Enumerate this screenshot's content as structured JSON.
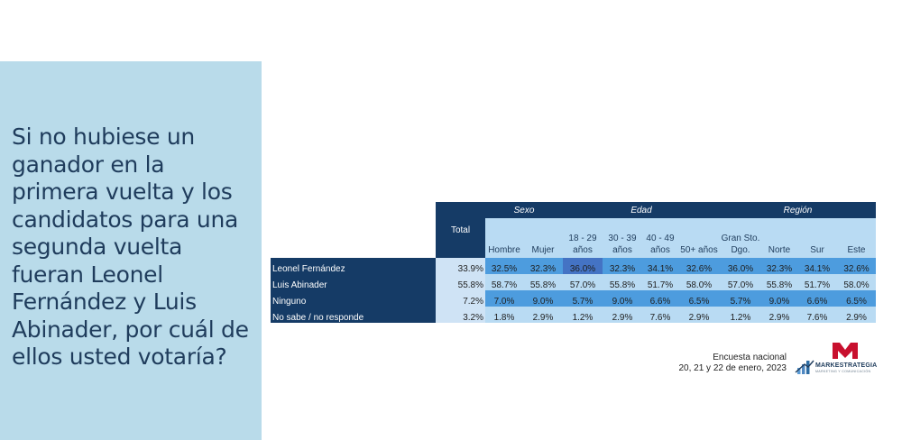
{
  "question": "Si no hubiese un ganador en la primera vuelta y los candidatos para una segunda vuelta fueran Leonel Fernández y Luis Abinader, por cuál de ellos usted votaría?",
  "table": {
    "total_label": "Total",
    "groups": [
      {
        "label": "Sexo",
        "span": 2
      },
      {
        "label": "Edad",
        "span": 4
      },
      {
        "label": "Región",
        "span": 4
      }
    ],
    "columns": [
      "Hombre",
      "Mujer",
      "18 - 29 años",
      "30 - 39 años",
      "40 - 49 años",
      "50+ años",
      "Gran Sto. Dgo.",
      "Norte",
      "Sur",
      "Este"
    ],
    "rows": [
      {
        "label": "Leonel Fernández",
        "total": "33.9%",
        "values": [
          "32.5%",
          "32.3%",
          "36.0%",
          "32.3%",
          "34.1%",
          "32.6%",
          "36.0%",
          "32.3%",
          "34.1%",
          "32.6%"
        ]
      },
      {
        "label": "Luis Abinader",
        "total": "55.8%",
        "values": [
          "58.7%",
          "55.8%",
          "57.0%",
          "55.8%",
          "51.7%",
          "58.0%",
          "57.0%",
          "55.8%",
          "51.7%",
          "58.0%"
        ]
      },
      {
        "label": "Ninguno",
        "total": "7.2%",
        "values": [
          "7.0%",
          "9.0%",
          "5.7%",
          "9.0%",
          "6.6%",
          "6.5%",
          "5.7%",
          "9.0%",
          "6.6%",
          "6.5%"
        ]
      },
      {
        "label": "No sabe / no responde",
        "total": "3.2%",
        "values": [
          "1.8%",
          "2.9%",
          "1.2%",
          "2.9%",
          "7.6%",
          "2.9%",
          "1.2%",
          "2.9%",
          "7.6%",
          "2.9%"
        ]
      }
    ]
  },
  "chart_data": {
    "type": "table",
    "columns": [
      "Total",
      "Hombre",
      "Mujer",
      "18 - 29 años",
      "30 - 39 años",
      "40 - 49 años",
      "50+ años",
      "Gran Sto. Dgo.",
      "Norte",
      "Sur",
      "Este"
    ],
    "column_groups": {
      "Sexo": [
        "Hombre",
        "Mujer"
      ],
      "Edad": [
        "18 - 29 años",
        "30 - 39 años",
        "40 - 49 años",
        "50+ años"
      ],
      "Región": [
        "Gran Sto. Dgo.",
        "Norte",
        "Sur",
        "Este"
      ]
    },
    "series": [
      {
        "name": "Leonel Fernández",
        "values": [
          33.9,
          32.5,
          32.3,
          36.0,
          32.3,
          34.1,
          32.6,
          36.0,
          32.3,
          34.1,
          32.6
        ]
      },
      {
        "name": "Luis Abinader",
        "values": [
          55.8,
          58.7,
          55.8,
          57.0,
          55.8,
          51.7,
          58.0,
          57.0,
          55.8,
          51.7,
          58.0
        ]
      },
      {
        "name": "Ninguno",
        "values": [
          7.2,
          7.0,
          9.0,
          5.7,
          9.0,
          6.6,
          6.5,
          5.7,
          9.0,
          6.6,
          6.5
        ]
      },
      {
        "name": "No sabe / no responde",
        "values": [
          3.2,
          1.8,
          2.9,
          1.2,
          2.9,
          7.6,
          2.9,
          1.2,
          2.9,
          7.6,
          2.9
        ]
      }
    ]
  },
  "footer": {
    "line1": "Encuesta nacional",
    "line2": "20, 21 y 22 de enero, 2023"
  },
  "logo": {
    "name": "MARKESTRATEGIA",
    "tagline": "MARKETING Y COMUNICACIÓN"
  },
  "colors": {
    "panel": "#b9dbea",
    "header_dark": "#153b66",
    "row_mid": "#4d9cde",
    "row_light": "#b9dbf3",
    "logo_red": "#c8102e"
  }
}
